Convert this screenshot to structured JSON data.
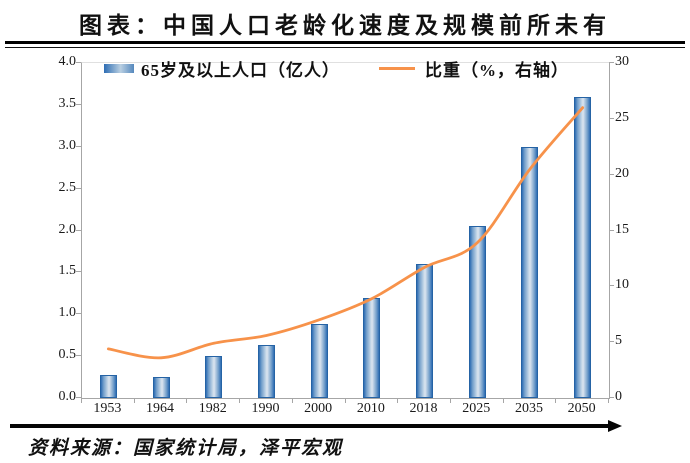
{
  "title": "图表：中国人口老龄化速度及规模前所未有",
  "source": "资料来源：国家统计局，泽平宏观",
  "legend": {
    "bars": "65岁及以上人口（亿人）",
    "line": "比重（%，右轴）"
  },
  "colors": {
    "bar_edge": "#2e6db4",
    "bar_center": "#dbe5ef",
    "bar_border": "#2563a5",
    "line": "#f7924a",
    "axis": "#a6a6a6",
    "rule": "#000000"
  },
  "chart_data": {
    "type": "bar",
    "title": "图表：中国人口老龄化速度及规模前所未有",
    "categories": [
      "1953",
      "1964",
      "1982",
      "1990",
      "2000",
      "2010",
      "2018",
      "2025",
      "2035",
      "2050"
    ],
    "series": [
      {
        "name": "65岁及以上人口（亿人）",
        "type": "bar",
        "axis": "left",
        "values": [
          0.27,
          0.25,
          0.5,
          0.63,
          0.88,
          1.19,
          1.6,
          2.05,
          3.0,
          3.6
        ]
      },
      {
        "name": "比重（%，右轴）",
        "type": "line",
        "axis": "right",
        "values": [
          4.4,
          3.6,
          4.9,
          5.6,
          7.0,
          8.9,
          11.7,
          13.9,
          20.5,
          26.0
        ]
      }
    ],
    "left_axis": {
      "min": 0,
      "max": 4,
      "step": 0.5,
      "labels": [
        "0.0",
        "0.5",
        "1.0",
        "1.5",
        "2.0",
        "2.5",
        "3.0",
        "3.5",
        "4.0"
      ]
    },
    "right_axis": {
      "min": 0,
      "max": 30,
      "step": 5,
      "labels": [
        "0",
        "5",
        "10",
        "15",
        "20",
        "25",
        "30"
      ]
    },
    "grid": false,
    "legend_position": "top-inside",
    "xlabel": "",
    "ylabel_left": "亿人",
    "ylabel_right": "%"
  }
}
